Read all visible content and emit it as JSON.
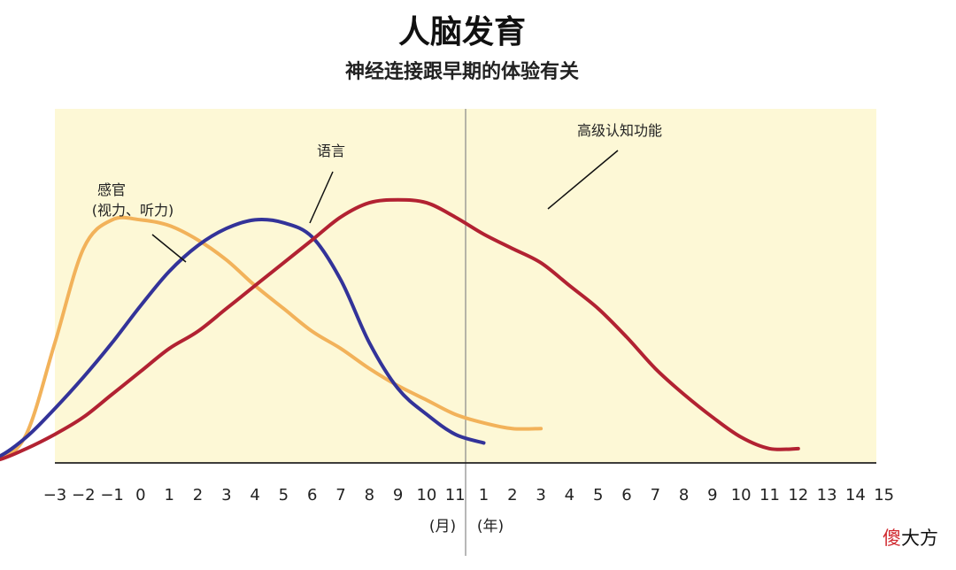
{
  "title": "人脑发育",
  "subtitle": "神经连接跟早期的体验有关",
  "watermark": {
    "part1": "傻",
    "part2": "大方"
  },
  "chart_data": {
    "type": "line",
    "x_tick_labels": [
      "−3",
      "−2",
      "−1",
      "0",
      "1",
      "2",
      "3",
      "4",
      "5",
      "6",
      "7",
      "8",
      "9",
      "10",
      "11",
      "1",
      "2",
      "3",
      "4",
      "5",
      "6",
      "7",
      "8",
      "9",
      "10",
      "11",
      "12",
      "13",
      "14",
      "15"
    ],
    "x_units": {
      "months": "(月)",
      "years": "(年)"
    },
    "divider_between": [
      "11 (月)",
      "1 (年)"
    ],
    "grid": false,
    "y_axis_labels": false,
    "series": [
      {
        "name": "感官(视力、听力)",
        "label_lines": [
          "感官",
          "(视力、听力)"
        ],
        "color": "#f2b25a",
        "points": [
          [
            -3,
            0
          ],
          [
            -2,
            0.01
          ],
          [
            -1,
            0.1
          ],
          [
            0,
            0.42
          ],
          [
            1,
            0.75
          ],
          [
            2,
            0.85
          ],
          [
            3,
            0.85
          ],
          [
            4,
            0.83
          ],
          [
            5,
            0.78
          ],
          [
            6,
            0.71
          ],
          [
            7,
            0.62
          ],
          [
            8,
            0.54
          ],
          [
            9,
            0.46
          ],
          [
            10,
            0.4
          ],
          [
            11,
            0.33
          ],
          [
            12,
            0.27
          ],
          [
            13,
            0.22
          ],
          [
            14,
            0.17
          ],
          [
            15,
            0.14
          ],
          [
            16,
            0.12
          ],
          [
            17,
            0.12
          ]
        ]
      },
      {
        "name": "语言",
        "label_lines": [
          "语言"
        ],
        "color": "#333399",
        "points": [
          [
            -3,
            0
          ],
          [
            -2,
            0.02
          ],
          [
            -1,
            0.09
          ],
          [
            0,
            0.19
          ],
          [
            1,
            0.3
          ],
          [
            2,
            0.42
          ],
          [
            3,
            0.55
          ],
          [
            4,
            0.67
          ],
          [
            5,
            0.76
          ],
          [
            6,
            0.82
          ],
          [
            7,
            0.85
          ],
          [
            8,
            0.84
          ],
          [
            9,
            0.79
          ],
          [
            10,
            0.64
          ],
          [
            11,
            0.42
          ],
          [
            12,
            0.26
          ],
          [
            13,
            0.17
          ],
          [
            14,
            0.1
          ],
          [
            15,
            0.07
          ]
        ]
      },
      {
        "name": "高级认知功能",
        "label_lines": [
          "高级认知功能"
        ],
        "color": "#b22232",
        "points": [
          [
            -3,
            0
          ],
          [
            -2,
            0.01
          ],
          [
            -1,
            0.05
          ],
          [
            0,
            0.1
          ],
          [
            1,
            0.16
          ],
          [
            2,
            0.24
          ],
          [
            3,
            0.32
          ],
          [
            4,
            0.4
          ],
          [
            5,
            0.46
          ],
          [
            6,
            0.54
          ],
          [
            7,
            0.62
          ],
          [
            8,
            0.7
          ],
          [
            9,
            0.78
          ],
          [
            10,
            0.86
          ],
          [
            11,
            0.91
          ],
          [
            12,
            0.92
          ],
          [
            13,
            0.91
          ],
          [
            14,
            0.86
          ],
          [
            15,
            0.8
          ],
          [
            16,
            0.75
          ],
          [
            17,
            0.7
          ],
          [
            18,
            0.62
          ],
          [
            19,
            0.54
          ],
          [
            20,
            0.44
          ],
          [
            21,
            0.33
          ],
          [
            22,
            0.24
          ],
          [
            23,
            0.16
          ],
          [
            24,
            0.09
          ],
          [
            25,
            0.05
          ],
          [
            26,
            0.05
          ]
        ]
      }
    ]
  }
}
